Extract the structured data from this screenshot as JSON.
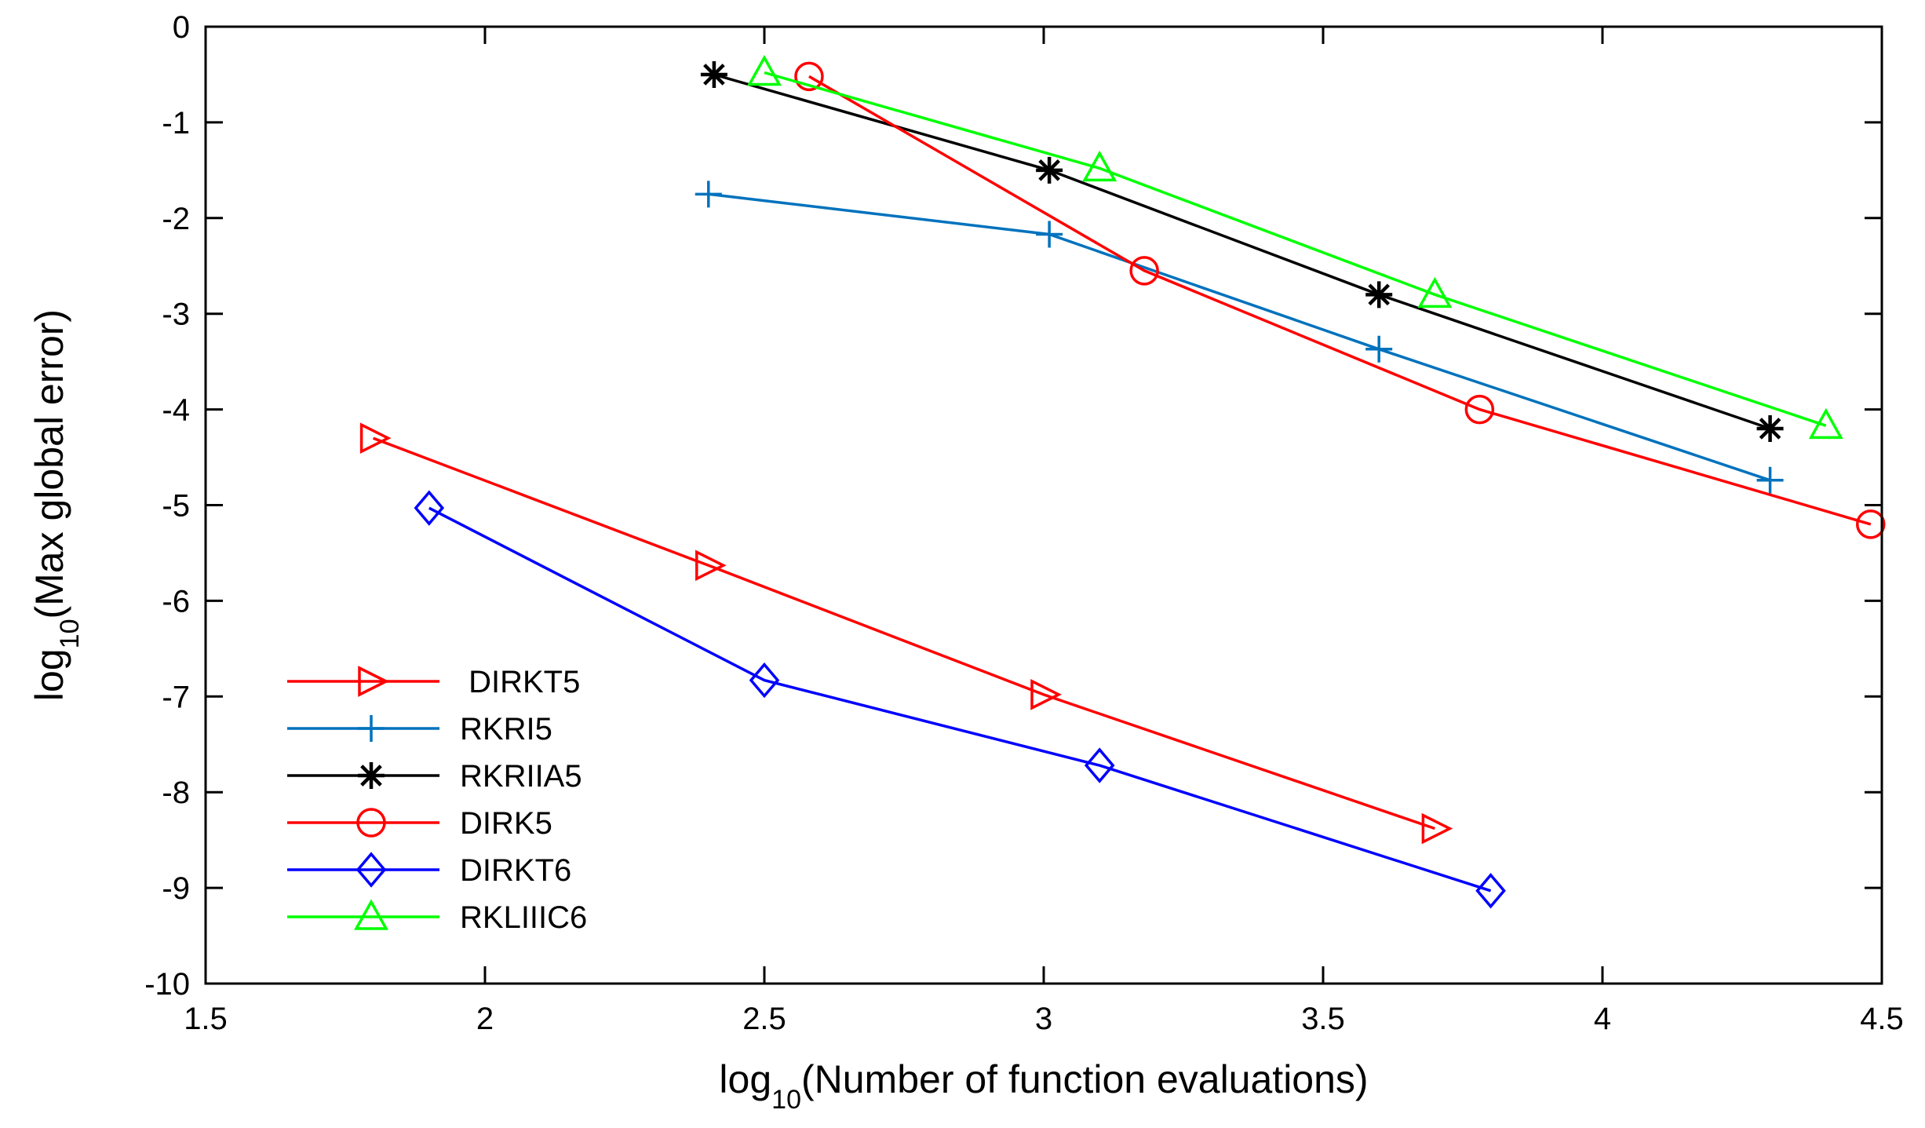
{
  "chart_data": {
    "type": "line",
    "title": "",
    "xlabel": {
      "prefix": "log",
      "sub": "10",
      "suffix": "(Number of function evaluations)"
    },
    "ylabel": {
      "prefix": "log",
      "sub": "10",
      "suffix": "(Max global error)"
    },
    "xlim": [
      1.5,
      4.5
    ],
    "ylim": [
      -10,
      0
    ],
    "xticks": [
      1.5,
      2,
      2.5,
      3,
      3.5,
      4,
      4.5
    ],
    "xtick_labels": [
      "1.5",
      "2",
      "2.5",
      "3",
      "3.5",
      "4",
      "4.5"
    ],
    "yticks": [
      0,
      -1,
      -2,
      -3,
      -4,
      -5,
      -6,
      -7,
      -8,
      -9,
      -10
    ],
    "ytick_labels": [
      "0",
      "-1",
      "-2",
      "-3",
      "-4",
      "-5",
      "-6",
      "-7",
      "-8",
      "-9",
      "-10"
    ],
    "grid": false,
    "legend_position": "lower-left",
    "series": [
      {
        "name": " DIRKT5",
        "color": "#ff0000",
        "marker": "triangle-right",
        "x": [
          1.8,
          2.4,
          3.0,
          3.7
        ],
        "y": [
          -4.3,
          -5.63,
          -6.98,
          -8.38
        ]
      },
      {
        "name": "RKRI5",
        "color": "#0072bd",
        "marker": "plus",
        "x": [
          2.4,
          3.01,
          3.6,
          4.3
        ],
        "y": [
          -1.75,
          -2.17,
          -3.37,
          -4.74
        ]
      },
      {
        "name": "RKRIIA5",
        "color": "#000000",
        "marker": "asterisk",
        "x": [
          2.41,
          3.01,
          3.6,
          4.3
        ],
        "y": [
          -0.5,
          -1.5,
          -2.8,
          -4.2
        ]
      },
      {
        "name": "DIRK5",
        "color": "#ff0000",
        "marker": "circle",
        "x": [
          2.58,
          3.18,
          3.78,
          4.48
        ],
        "y": [
          -0.52,
          -2.55,
          -4.0,
          -5.2
        ]
      },
      {
        "name": "DIRKT6",
        "color": "#0000ff",
        "marker": "diamond",
        "x": [
          1.9,
          2.5,
          3.1,
          3.8
        ],
        "y": [
          -5.03,
          -6.83,
          -7.72,
          -9.03
        ]
      },
      {
        "name": "RKLIIIC6",
        "color": "#00ff00",
        "marker": "triangle-up",
        "x": [
          2.5,
          3.1,
          3.7,
          4.4
        ],
        "y": [
          -0.48,
          -1.48,
          -2.8,
          -4.17
        ]
      }
    ]
  }
}
